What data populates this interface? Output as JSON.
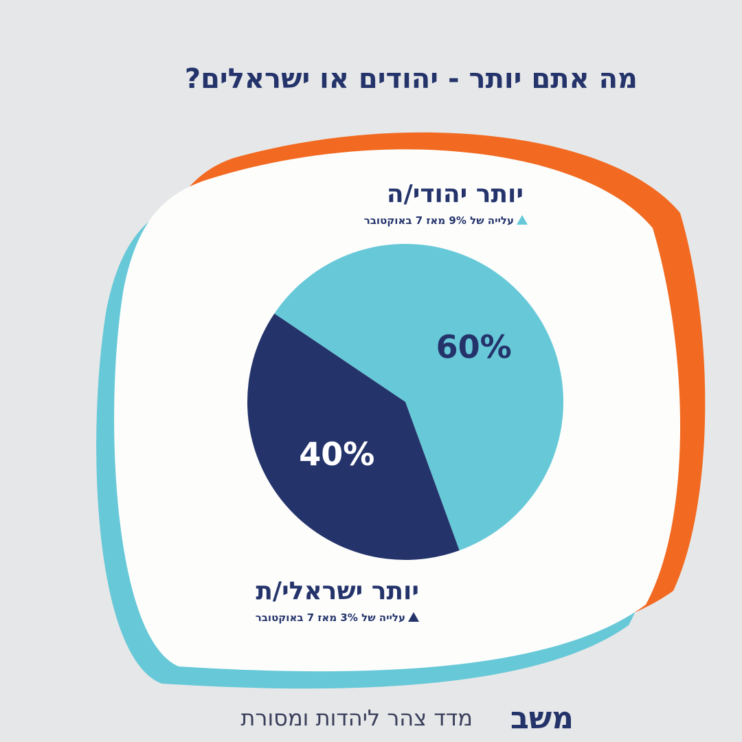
{
  "chart_data": {
    "type": "pie",
    "title": "מה אתם יותר - יהודים או ישראלים?",
    "categories": [
      "יותר יהודי/ה",
      "יותר ישראלי/ת"
    ],
    "values": [
      60,
      40
    ],
    "value_labels": [
      "60%",
      "40%"
    ],
    "colors": [
      "#67c9d8",
      "#24346b"
    ],
    "label_colors": [
      "#24346b",
      "#ffffff"
    ],
    "annotations": [
      "עלייה של 9% מאז 7 באוקטובר",
      "עלייה של 3% מאז 7 באוקטובר"
    ],
    "footer": "מדד צהר ליהדות ומסורת",
    "logo": "משב"
  }
}
